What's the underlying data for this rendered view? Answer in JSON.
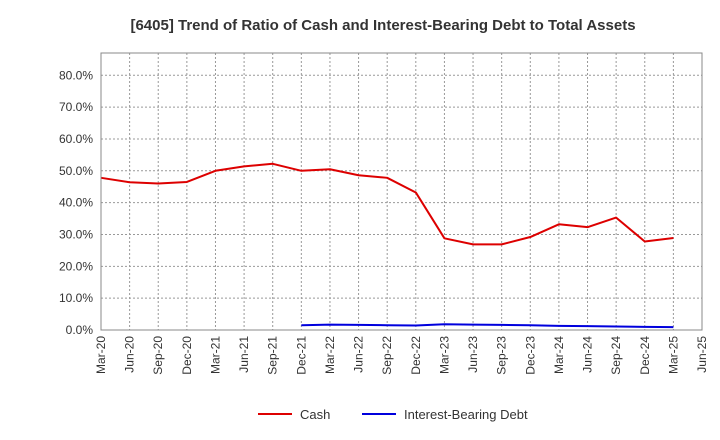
{
  "chart_data": {
    "type": "line",
    "title": "[6405]  Trend of Ratio of Cash and Interest-Bearing Debt to Total Assets",
    "xlabel": "",
    "ylabel": "",
    "x": [
      "Mar-20",
      "Jun-20",
      "Sep-20",
      "Dec-20",
      "Mar-21",
      "Jun-21",
      "Sep-21",
      "Dec-21",
      "Mar-22",
      "Jun-22",
      "Sep-22",
      "Dec-22",
      "Mar-23",
      "Jun-23",
      "Sep-23",
      "Dec-23",
      "Mar-24",
      "Jun-24",
      "Sep-24",
      "Dec-24",
      "Mar-25",
      "Jun-25"
    ],
    "y_ticks": [
      "0.0%",
      "10.0%",
      "20.0%",
      "30.0%",
      "40.0%",
      "50.0%",
      "60.0%",
      "70.0%",
      "80.0%"
    ],
    "ylim": [
      0,
      87
    ],
    "grid": true,
    "legend_position": "bottom",
    "series": [
      {
        "name": "Cash",
        "color": "#dd0000",
        "values": [
          47.8,
          46.4,
          46.0,
          46.5,
          50.0,
          51.4,
          52.2,
          50.0,
          50.5,
          48.6,
          47.8,
          43.2,
          28.8,
          26.9,
          26.9,
          29.2,
          33.2,
          32.3,
          35.3,
          27.8,
          28.9,
          null
        ]
      },
      {
        "name": "Interest-Bearing Debt",
        "color": "#0000dd",
        "values": [
          null,
          null,
          null,
          null,
          null,
          null,
          null,
          1.5,
          1.7,
          1.6,
          1.5,
          1.4,
          1.8,
          1.7,
          1.6,
          1.5,
          1.3,
          1.2,
          1.1,
          1.0,
          0.9,
          null
        ]
      }
    ]
  }
}
